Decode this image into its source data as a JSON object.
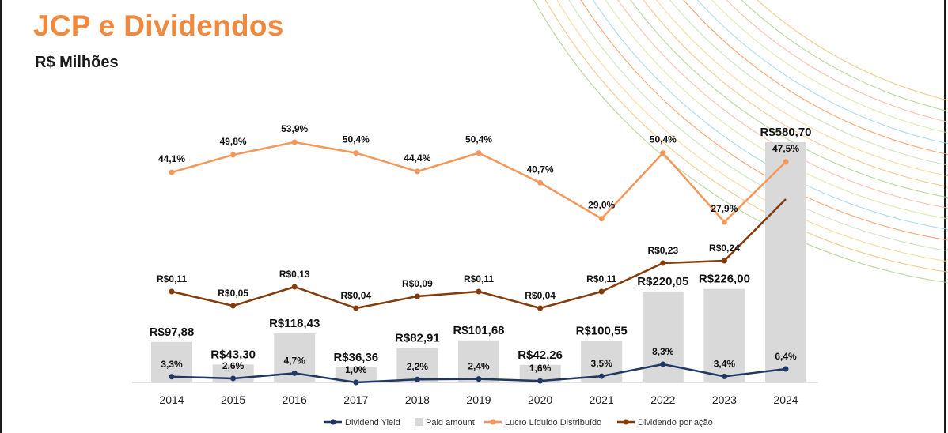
{
  "title": "JCP e Dividendos",
  "subtitle": "R$ Milhões",
  "chart_data": {
    "type": "bar",
    "categories": [
      "2014",
      "2015",
      "2016",
      "2017",
      "2018",
      "2019",
      "2020",
      "2021",
      "2022",
      "2023",
      "2024"
    ],
    "series": [
      {
        "name": "Paid amount",
        "type": "bar",
        "color": "#d9d9d9",
        "values": [
          97.88,
          43.3,
          118.43,
          36.36,
          82.91,
          101.68,
          42.26,
          100.55,
          220.05,
          226.0,
          580.7
        ],
        "labels": [
          "R$97,88",
          "R$43,30",
          "R$118,43",
          "R$36,36",
          "R$82,91",
          "R$101,68",
          "R$42,26",
          "R$100,55",
          "R$220,05",
          "R$226,00",
          "R$580,70"
        ]
      },
      {
        "name": "Dividend Yield",
        "type": "line",
        "color": "#1f3864",
        "values": [
          3.3,
          2.6,
          4.7,
          1.0,
          2.2,
          2.4,
          1.6,
          3.5,
          8.3,
          3.4,
          6.4
        ],
        "labels": [
          "3,3%",
          "2,6%",
          "4,7%",
          "1,0%",
          "2,2%",
          "2,4%",
          "1,6%",
          "3,5%",
          "8,3%",
          "3,4%",
          "6,4%"
        ]
      },
      {
        "name": "Lucro Líquido Distribuído",
        "type": "line",
        "color": "#f4975a",
        "values": [
          44.1,
          49.8,
          53.9,
          50.4,
          44.4,
          50.4,
          40.7,
          29.0,
          50.4,
          27.9,
          47.5
        ],
        "labels": [
          "44,1%",
          "49,8%",
          "53,9%",
          "50,4%",
          "44,4%",
          "50,4%",
          "40,7%",
          "29,0%",
          "50,4%",
          "27,9%",
          "47,5%"
        ]
      },
      {
        "name": "Dividendo por ação",
        "type": "line",
        "color": "#843c0c",
        "values": [
          0.11,
          0.05,
          0.13,
          0.04,
          0.09,
          0.11,
          0.04,
          0.11,
          0.23,
          0.24,
          0.5
        ],
        "labels": [
          "R$0,11",
          "R$0,05",
          "R$0,13",
          "R$0,04",
          "R$0,09",
          "R$0,11",
          "R$0,04",
          "R$0,11",
          "R$0,23",
          "R$0,24",
          ""
        ]
      }
    ],
    "legend": [
      "Dividend Yield",
      "Paid amount",
      "Lucro Líquido Distribuído",
      "Dividendo por ação"
    ],
    "legend_position": "bottom",
    "grid": false
  }
}
